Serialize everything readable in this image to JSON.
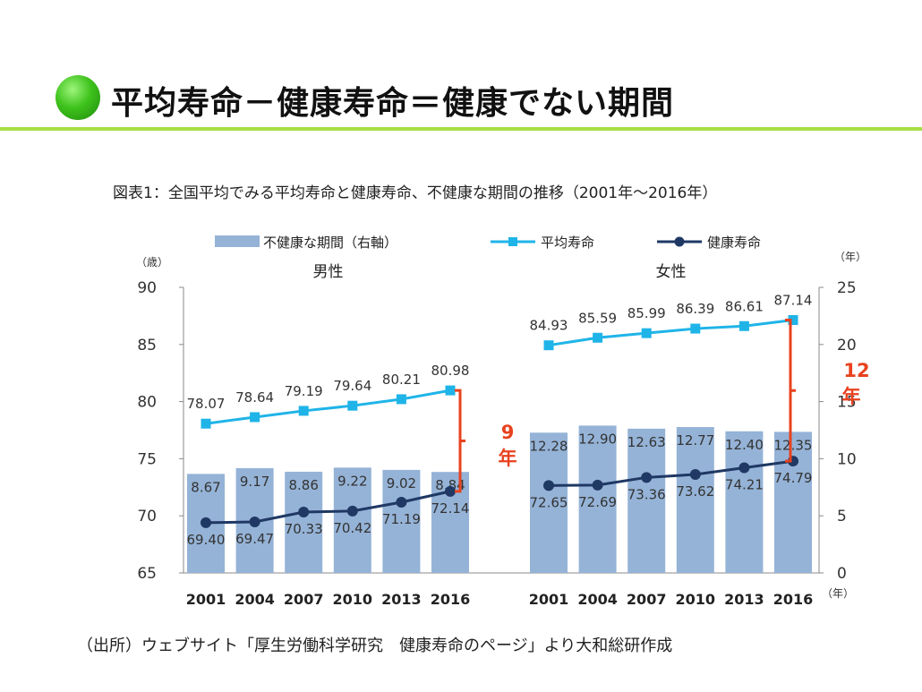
{
  "slide": {
    "title": "平均寿命－健康寿命＝健康でない期間",
    "caption": "図表1：全国平均でみる平均寿命と健康寿命、不健康な期間の推移（2001年～2016年）",
    "source": "（出所）ウェブサイト「厚生労働科学研究　健康寿命のページ」より大和総研作成",
    "accent_color": "#a6df44"
  },
  "chart_data": {
    "type": "bar+line",
    "legend": [
      {
        "label": "不健康な期間（右軸）",
        "kind": "bar",
        "color": "#95b3d7"
      },
      {
        "label": "平均寿命",
        "kind": "line",
        "color": "#1fb4e8"
      },
      {
        "label": "健康寿命",
        "kind": "line",
        "color": "#1f3864"
      }
    ],
    "legend_placement": "top",
    "left_axis": {
      "unit_label": "（歳）",
      "ticks": [
        "90",
        "85",
        "80",
        "75",
        "70",
        "65"
      ],
      "range": [
        65,
        90
      ]
    },
    "right_axis": {
      "unit_label": "（年）",
      "ticks": [
        "25",
        "20",
        "15",
        "10",
        "5",
        "0"
      ],
      "range": [
        0,
        25
      ]
    },
    "x_unit_label": "（年）",
    "panels": [
      {
        "title": "男性",
        "categories": [
          "2001",
          "2004",
          "2007",
          "2010",
          "2013",
          "2016"
        ],
        "unhealthy_period": {
          "values": [
            8.67,
            9.17,
            8.86,
            9.22,
            9.02,
            8.84
          ],
          "labels": [
            "8.67",
            "9.17",
            "8.86",
            "9.22",
            "9.02",
            "8.84"
          ]
        },
        "life_expectancy": {
          "values": [
            78.07,
            78.64,
            79.19,
            79.64,
            80.21,
            80.98
          ],
          "labels": [
            "78.07",
            "78.64",
            "79.19",
            "79.64",
            "80.21",
            "80.98"
          ]
        },
        "healthy_life": {
          "values": [
            69.4,
            69.47,
            70.33,
            70.42,
            71.19,
            72.14
          ],
          "labels": [
            "69.40",
            "69.47",
            "70.33",
            "70.42",
            "71.19",
            "72.14"
          ]
        },
        "gap_annotation": "9年"
      },
      {
        "title": "女性",
        "categories": [
          "2001",
          "2004",
          "2007",
          "2010",
          "2013",
          "2016"
        ],
        "unhealthy_period": {
          "values": [
            12.28,
            12.9,
            12.63,
            12.77,
            12.4,
            12.35
          ],
          "labels": [
            "12.28",
            "12.90",
            "12.63",
            "12.77",
            "12.40",
            "12.35"
          ]
        },
        "life_expectancy": {
          "values": [
            84.93,
            85.59,
            85.99,
            86.39,
            86.61,
            87.14
          ],
          "labels": [
            "84.93",
            "85.59",
            "85.99",
            "86.39",
            "86.61",
            "87.14"
          ]
        },
        "healthy_life": {
          "values": [
            72.65,
            72.69,
            73.36,
            73.62,
            74.21,
            74.79
          ],
          "labels": [
            "72.65",
            "72.69",
            "73.36",
            "73.62",
            "74.21",
            "74.79"
          ]
        },
        "gap_annotation": "12年"
      }
    ],
    "annotation_color": "#e8421e",
    "grid": false
  }
}
